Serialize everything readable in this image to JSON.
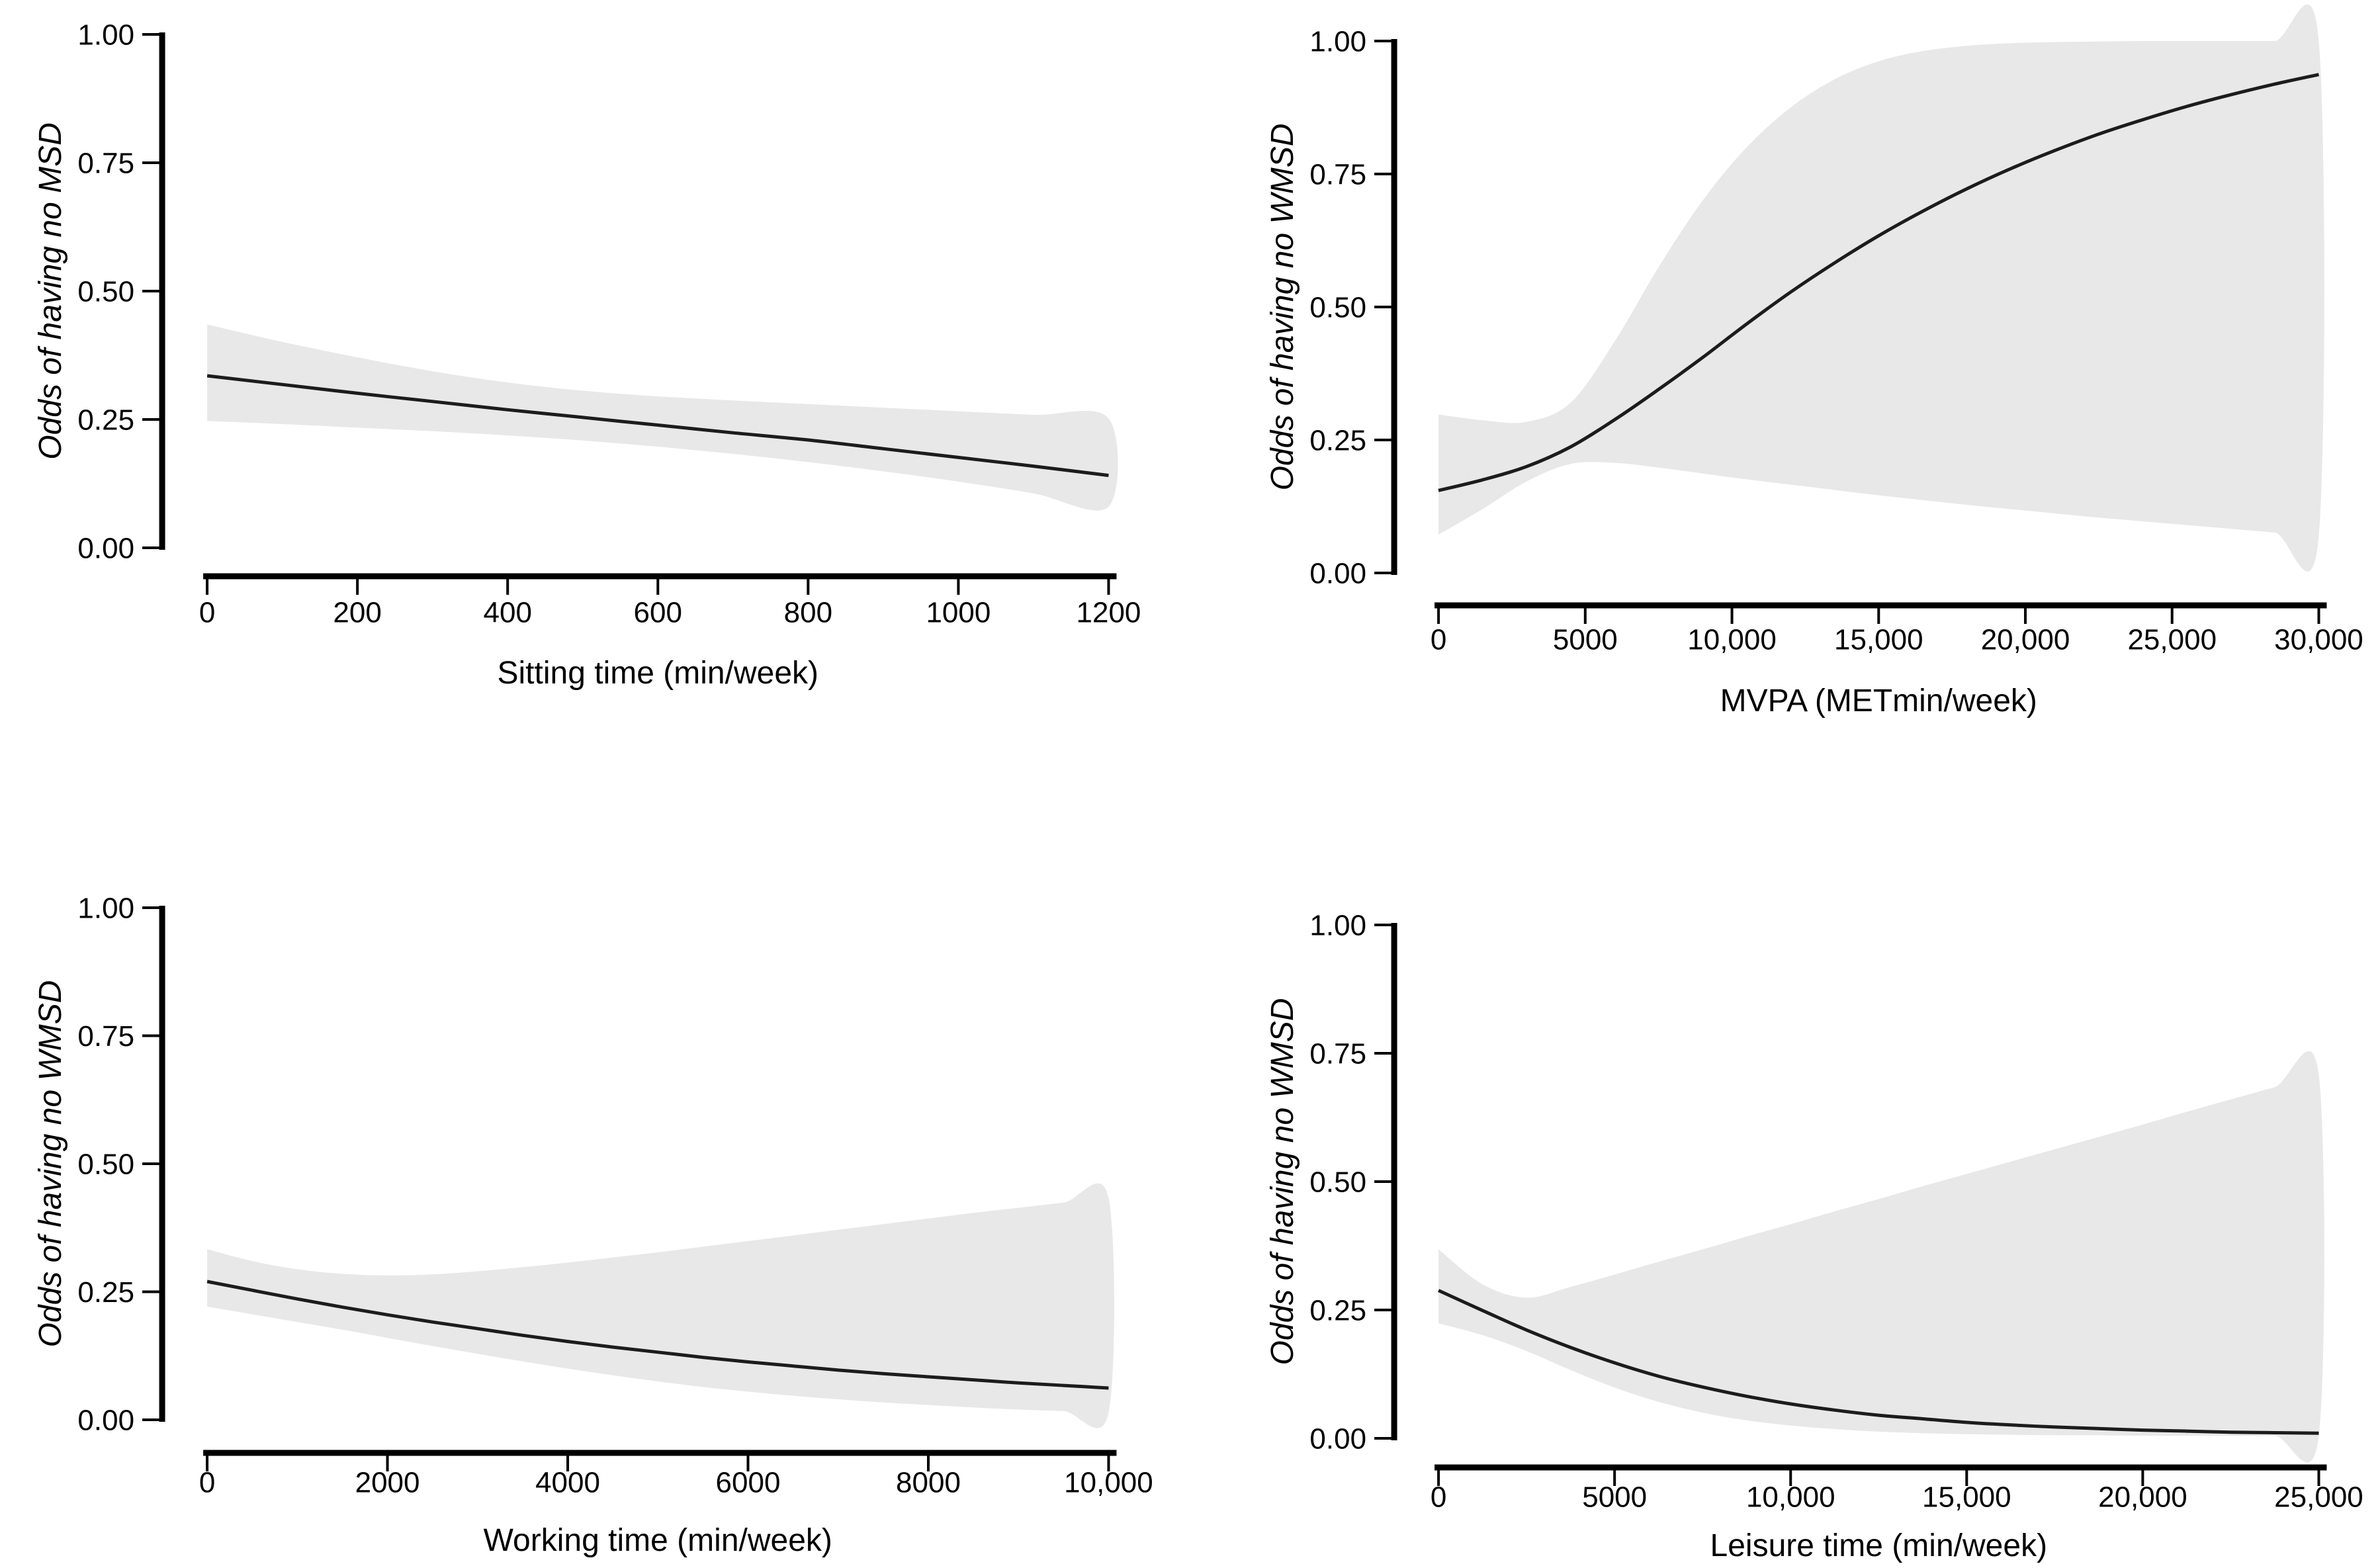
{
  "page": {
    "background": "#ffffff"
  },
  "style": {
    "line_color": "#1c1c1c",
    "band_color": "#e8e8e8",
    "axis_color": "#000000",
    "text_color": "#000000"
  },
  "chart_data": [
    {
      "id": "sitting-time",
      "type": "line",
      "position": "top-left",
      "title": "",
      "xlabel": "Sitting time (min/week)",
      "ylabel": "Odds of having no MSD",
      "xlim": [
        0,
        1200
      ],
      "ylim": [
        0,
        1
      ],
      "grid": false,
      "legend": "none",
      "xticks": {
        "values": [
          0,
          200,
          400,
          600,
          800,
          1000,
          1200
        ],
        "labels": [
          "0",
          "200",
          "400",
          "600",
          "800",
          "1000",
          "1200"
        ]
      },
      "yticks": {
        "values": [
          0,
          0.25,
          0.5,
          0.75,
          1
        ],
        "labels": [
          "0.00",
          "0.25",
          "0.50",
          "0.75",
          "1.00"
        ]
      },
      "series": [
        {
          "name": "estimate",
          "x": [
            0,
            100,
            200,
            300,
            400,
            500,
            600,
            700,
            800,
            900,
            1000,
            1100,
            1200
          ],
          "y": [
            0.335,
            0.318,
            0.301,
            0.285,
            0.269,
            0.254,
            0.239,
            0.224,
            0.21,
            0.193,
            0.176,
            0.159,
            0.141
          ]
        }
      ],
      "band": {
        "name": "confidence-interval",
        "x": [
          0,
          100,
          200,
          300,
          400,
          500,
          600,
          700,
          800,
          900,
          1000,
          1100,
          1200
        ],
        "upper": [
          0.435,
          0.401,
          0.371,
          0.344,
          0.322,
          0.306,
          0.295,
          0.287,
          0.28,
          0.273,
          0.266,
          0.259,
          0.252
        ],
        "lower": [
          0.247,
          0.241,
          0.234,
          0.227,
          0.219,
          0.209,
          0.197,
          0.183,
          0.167,
          0.149,
          0.129,
          0.106,
          0.08
        ]
      }
    },
    {
      "id": "mvpa",
      "type": "line",
      "position": "top-right",
      "title": "",
      "xlabel": "MVPA (METmin/week)",
      "ylabel": "Odds of having no WMSD",
      "xlim": [
        0,
        30000
      ],
      "ylim": [
        0,
        1
      ],
      "grid": false,
      "legend": "none",
      "xticks": {
        "values": [
          0,
          5000,
          10000,
          15000,
          20000,
          25000,
          30000
        ],
        "labels": [
          "0",
          "5000",
          "10,000",
          "15,000",
          "20,000",
          "25,000",
          "30,000"
        ]
      },
      "yticks": {
        "values": [
          0,
          0.25,
          0.5,
          0.75,
          1
        ],
        "labels": [
          "0.00",
          "0.25",
          "0.50",
          "0.75",
          "1.00"
        ]
      },
      "series": [
        {
          "name": "estimate",
          "x": [
            0,
            1500,
            3000,
            4500,
            6000,
            7500,
            9000,
            10500,
            12000,
            13500,
            15000,
            16500,
            18000,
            19500,
            21000,
            22500,
            24000,
            25500,
            27000,
            28500,
            30000
          ],
          "y": [
            0.155,
            0.175,
            0.2,
            0.237,
            0.288,
            0.345,
            0.405,
            0.468,
            0.528,
            0.583,
            0.634,
            0.68,
            0.722,
            0.76,
            0.794,
            0.825,
            0.852,
            0.877,
            0.899,
            0.919,
            0.937
          ]
        }
      ],
      "band": {
        "name": "confidence-interval",
        "x": [
          0,
          1500,
          3000,
          4500,
          6000,
          7500,
          9000,
          10500,
          12000,
          13500,
          15000,
          16500,
          18000,
          19500,
          21000,
          22500,
          24000,
          25500,
          27000,
          28500,
          30000
        ],
        "upper": [
          0.298,
          0.287,
          0.284,
          0.32,
          0.435,
          0.575,
          0.7,
          0.8,
          0.875,
          0.928,
          0.962,
          0.981,
          0.991,
          0.996,
          0.998,
          0.999,
          1.0,
          1.0,
          1.0,
          1.0,
          1.0
        ],
        "lower": [
          0.072,
          0.12,
          0.172,
          0.205,
          0.207,
          0.198,
          0.187,
          0.176,
          0.166,
          0.156,
          0.146,
          0.137,
          0.128,
          0.12,
          0.112,
          0.104,
          0.097,
          0.09,
          0.083,
          0.076,
          0.07
        ]
      }
    },
    {
      "id": "working-time",
      "type": "line",
      "position": "bottom-left",
      "title": "",
      "xlabel": "Working time (min/week)",
      "ylabel": "Odds of having no WMSD",
      "xlim": [
        0,
        10000
      ],
      "ylim": [
        0,
        1
      ],
      "grid": false,
      "legend": "none",
      "xticks": {
        "values": [
          0,
          2000,
          4000,
          6000,
          8000,
          10000
        ],
        "labels": [
          "0",
          "2000",
          "4000",
          "6000",
          "8000",
          "10,000"
        ]
      },
      "yticks": {
        "values": [
          0,
          0.25,
          0.5,
          0.75,
          1
        ],
        "labels": [
          "0.00",
          "0.25",
          "0.50",
          "0.75",
          "1.00"
        ]
      },
      "series": [
        {
          "name": "estimate",
          "x": [
            0,
            500,
            1000,
            1500,
            2000,
            2500,
            3000,
            3500,
            4000,
            4500,
            5000,
            5500,
            6000,
            6500,
            7000,
            7500,
            8000,
            8500,
            9000,
            9500,
            10000
          ],
          "y": [
            0.27,
            0.253,
            0.236,
            0.22,
            0.205,
            0.191,
            0.178,
            0.165,
            0.153,
            0.142,
            0.132,
            0.122,
            0.113,
            0.105,
            0.097,
            0.09,
            0.084,
            0.078,
            0.072,
            0.067,
            0.062
          ]
        }
      ],
      "band": {
        "name": "confidence-interval",
        "x": [
          0,
          500,
          1000,
          1500,
          2000,
          2500,
          3000,
          3500,
          4000,
          4500,
          5000,
          5500,
          6000,
          6500,
          7000,
          7500,
          8000,
          8500,
          9000,
          9500,
          10000
        ],
        "upper": [
          0.333,
          0.31,
          0.294,
          0.285,
          0.282,
          0.284,
          0.29,
          0.298,
          0.307,
          0.317,
          0.327,
          0.338,
          0.349,
          0.36,
          0.371,
          0.382,
          0.393,
          0.404,
          0.414,
          0.424,
          0.433
        ],
        "lower": [
          0.221,
          0.206,
          0.191,
          0.176,
          0.16,
          0.144,
          0.129,
          0.114,
          0.1,
          0.087,
          0.075,
          0.064,
          0.055,
          0.047,
          0.04,
          0.034,
          0.029,
          0.024,
          0.02,
          0.017,
          0.014
        ]
      }
    },
    {
      "id": "leisure-time",
      "type": "line",
      "position": "bottom-right",
      "title": "",
      "xlabel": "Leisure time (min/week)",
      "ylabel": "Odds of having no WMSD",
      "xlim": [
        0,
        25000
      ],
      "ylim": [
        0,
        1
      ],
      "grid": false,
      "legend": "none",
      "xticks": {
        "values": [
          0,
          5000,
          10000,
          15000,
          20000,
          25000
        ],
        "labels": [
          "0",
          "5000",
          "10,000",
          "15,000",
          "20,000",
          "25,000"
        ]
      },
      "yticks": {
        "values": [
          0,
          0.25,
          0.5,
          0.75,
          1
        ],
        "labels": [
          "0.00",
          "0.25",
          "0.50",
          "0.75",
          "1.00"
        ]
      },
      "series": [
        {
          "name": "estimate",
          "x": [
            0,
            1250,
            2500,
            3750,
            5000,
            6250,
            7500,
            8750,
            10000,
            11250,
            12500,
            13750,
            15000,
            16250,
            17500,
            18750,
            20000,
            21250,
            22500,
            23750,
            25000
          ],
          "y": [
            0.288,
            0.249,
            0.211,
            0.177,
            0.147,
            0.121,
            0.1,
            0.082,
            0.067,
            0.055,
            0.045,
            0.038,
            0.031,
            0.026,
            0.022,
            0.019,
            0.016,
            0.014,
            0.012,
            0.011,
            0.01
          ]
        }
      ],
      "band": {
        "name": "confidence-interval",
        "x": [
          0,
          1250,
          2500,
          3750,
          5000,
          6250,
          7500,
          8750,
          10000,
          11250,
          12500,
          13750,
          15000,
          16250,
          17500,
          18750,
          20000,
          21250,
          22500,
          23750,
          25000
        ],
        "upper": [
          0.368,
          0.3,
          0.274,
          0.295,
          0.319,
          0.344,
          0.368,
          0.393,
          0.417,
          0.442,
          0.466,
          0.491,
          0.515,
          0.539,
          0.563,
          0.587,
          0.611,
          0.636,
          0.66,
          0.684,
          0.708
        ],
        "lower": [
          0.224,
          0.201,
          0.17,
          0.133,
          0.099,
          0.071,
          0.05,
          0.035,
          0.025,
          0.018,
          0.013,
          0.01,
          0.008,
          0.007,
          0.006,
          0.006,
          0.005,
          0.005,
          0.005,
          0.005,
          0.005
        ]
      }
    }
  ]
}
